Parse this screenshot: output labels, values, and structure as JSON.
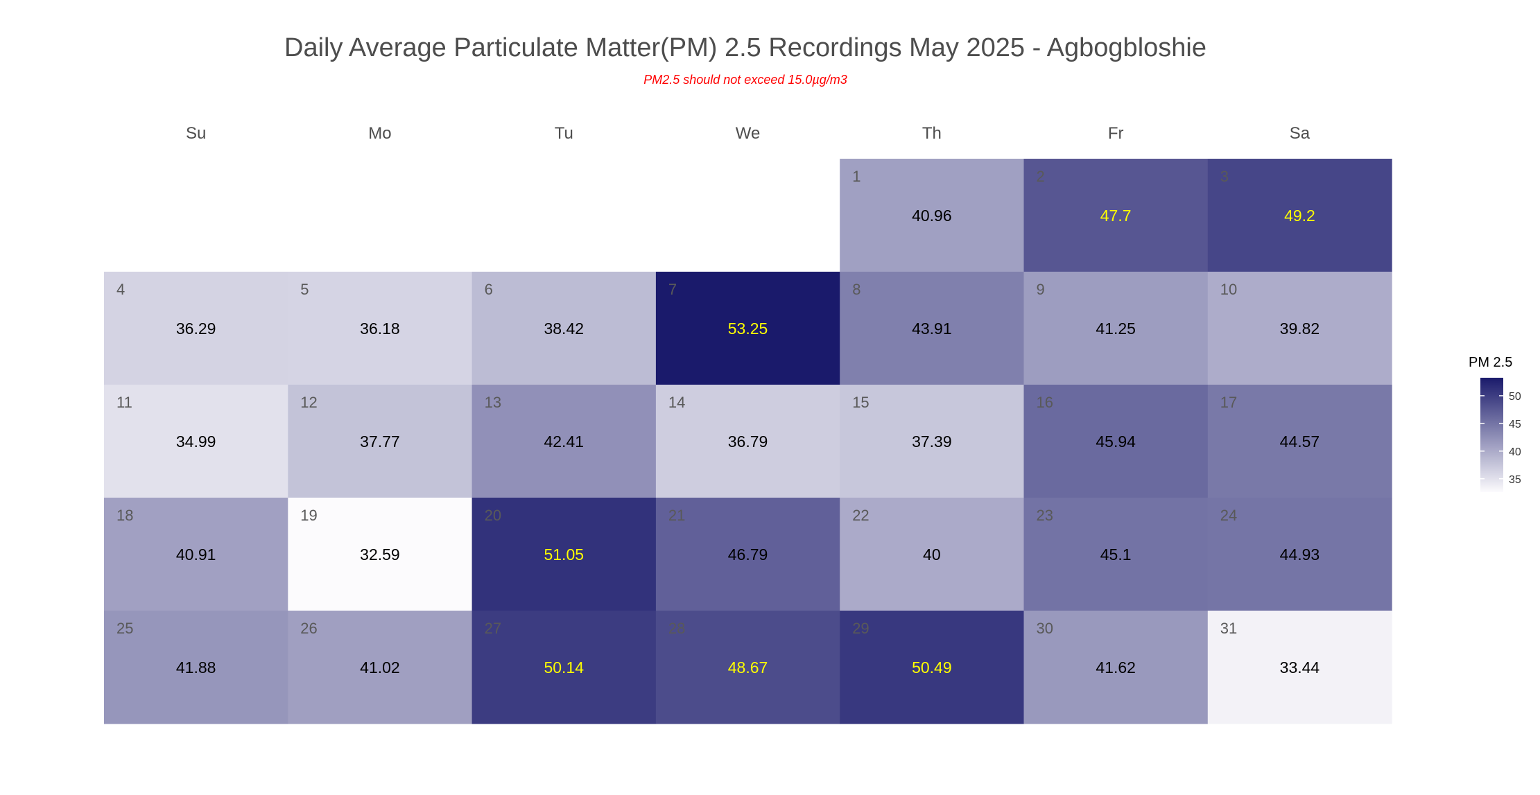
{
  "title": "Daily Average Particulate Matter(PM) 2.5 Recordings May 2025 -  Agbogbloshie",
  "subtitle": "PM2.5 should not exceed 15.0µg/m3",
  "colors": {
    "scale_low": "#fcfbfd",
    "scale_high": "#1a1a6b",
    "text_dark": "#000000",
    "text_light": "#ffff00",
    "day_number": "#595959",
    "subtitle": "#ff0000"
  },
  "chart_data": {
    "type": "heatmap",
    "title": "Daily Average Particulate Matter(PM) 2.5 Recordings May 2025 -  Agbogbloshie",
    "subtitle": "PM2.5 should not exceed 15.0µg/m3",
    "weekdays": [
      "Su",
      "Mo",
      "Tu",
      "We",
      "Th",
      "Fr",
      "Sa"
    ],
    "first_weekday_index": 4,
    "legend_title": "PM 2.5",
    "legend_ticks": [
      35,
      40,
      45,
      50
    ],
    "color_range": [
      32.59,
      53.25
    ],
    "days": [
      1,
      2,
      3,
      4,
      5,
      6,
      7,
      8,
      9,
      10,
      11,
      12,
      13,
      14,
      15,
      16,
      17,
      18,
      19,
      20,
      21,
      22,
      23,
      24,
      25,
      26,
      27,
      28,
      29,
      30,
      31
    ],
    "values": [
      40.96,
      47.7,
      49.2,
      36.29,
      36.18,
      38.42,
      53.25,
      43.91,
      41.25,
      39.82,
      34.99,
      37.77,
      42.41,
      36.79,
      37.39,
      45.94,
      44.57,
      40.91,
      32.59,
      51.05,
      46.79,
      40,
      45.1,
      44.93,
      41.88,
      41.02,
      50.14,
      48.67,
      50.49,
      41.62,
      33.44
    ],
    "labels": [
      "40.96",
      "47.7",
      "49.2",
      "36.29",
      "36.18",
      "38.42",
      "53.25",
      "43.91",
      "41.25",
      "39.82",
      "34.99",
      "37.77",
      "42.41",
      "36.79",
      "37.39",
      "45.94",
      "44.57",
      "40.91",
      "32.59",
      "51.05",
      "46.79",
      "40",
      "45.1",
      "44.93",
      "41.88",
      "41.02",
      "50.14",
      "48.67",
      "50.49",
      "41.62",
      "33.44"
    ],
    "highlight_threshold": 47.5
  }
}
